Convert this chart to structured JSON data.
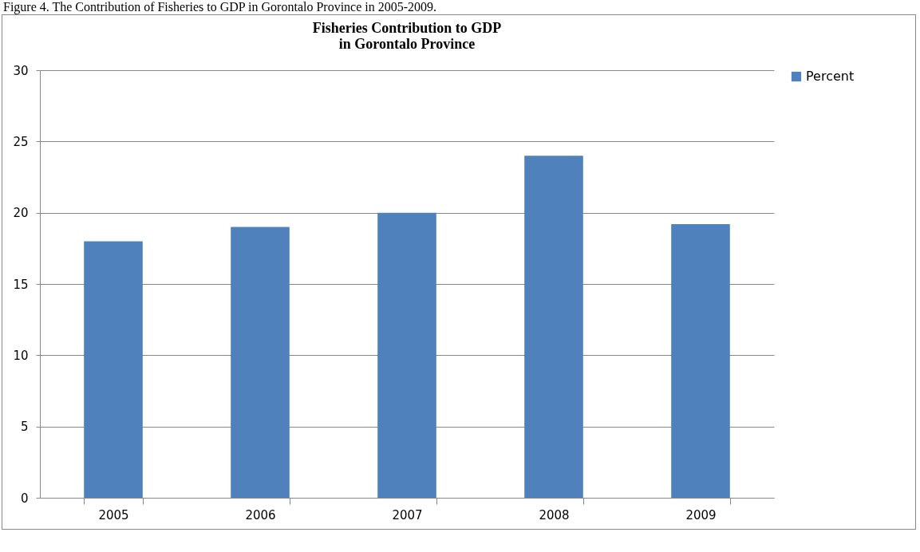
{
  "chart_data": {
    "type": "bar",
    "title": "Fisheries Contribution to GDP\nin Gorontalo Province",
    "annotations": [
      "Figure 4. The Contribution of Fisheries to GDP in Gorontalo Province in 2005-2009."
    ],
    "categories": [
      "2005",
      "2006",
      "2007",
      "2008",
      "2009"
    ],
    "series": [
      {
        "name": "Percent",
        "color": "#4f81bd",
        "values": [
          18,
          19,
          20,
          24,
          19.2
        ]
      }
    ],
    "ylim": [
      0,
      30
    ],
    "yticks": [
      0,
      5,
      10,
      15,
      20,
      25,
      30
    ],
    "grid": "y",
    "legend": "right"
  }
}
